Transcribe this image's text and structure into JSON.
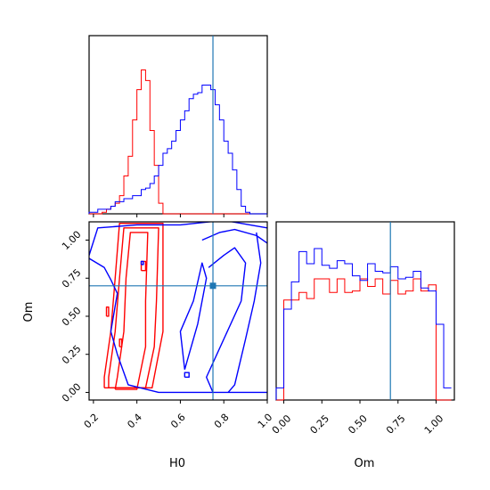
{
  "chart_data": {
    "type": "corner",
    "params": [
      "H0",
      "Om"
    ],
    "colors": {
      "run_a": "#ff0000",
      "run_b": "#0000ff",
      "truth": "#1f77b4"
    },
    "truth": {
      "H0": 0.75,
      "Om": 0.7
    },
    "axes": {
      "H0": {
        "label": "H0",
        "range": [
          0.18,
          1.0
        ],
        "ticks": [
          0.2,
          0.4,
          0.6,
          0.8,
          1.0
        ],
        "tick_labels": [
          "0.2",
          "0.4",
          "0.6",
          "0.8",
          "1.0"
        ]
      },
      "Om": {
        "label": "Om",
        "range": [
          -0.05,
          1.12
        ],
        "ticks": [
          0.0,
          0.25,
          0.5,
          0.75,
          1.0
        ],
        "tick_labels": [
          "0.00",
          "0.25",
          "0.50",
          "0.75",
          "1.00"
        ]
      }
    },
    "hist_H0": {
      "bin_edges": [
        0.18,
        0.2,
        0.22,
        0.24,
        0.26,
        0.28,
        0.3,
        0.32,
        0.34,
        0.36,
        0.38,
        0.4,
        0.42,
        0.44,
        0.46,
        0.48,
        0.5,
        0.52,
        0.54,
        0.56,
        0.58,
        0.6,
        0.62,
        0.64,
        0.66,
        0.68,
        0.7,
        0.72,
        0.74,
        0.76,
        0.78,
        0.8,
        0.82,
        0.84,
        0.86,
        0.88,
        0.9,
        0.92,
        0.94,
        0.96,
        0.98,
        1.0
      ],
      "series": [
        {
          "color": "red",
          "counts": [
            0,
            0,
            0,
            0.01,
            0.03,
            0.05,
            0.07,
            0.12,
            0.25,
            0.38,
            0.62,
            0.82,
            0.95,
            0.88,
            0.55,
            0.32,
            0.07,
            0,
            0,
            0,
            0,
            0,
            0,
            0,
            0,
            0,
            0,
            0,
            0,
            0,
            0,
            0,
            0,
            0,
            0,
            0,
            0,
            0,
            0,
            0,
            0
          ]
        },
        {
          "color": "blue",
          "counts": [
            0.01,
            0.01,
            0.03,
            0.03,
            0.03,
            0.05,
            0.08,
            0.08,
            0.1,
            0.1,
            0.12,
            0.12,
            0.16,
            0.17,
            0.2,
            0.25,
            0.32,
            0.4,
            0.43,
            0.48,
            0.55,
            0.62,
            0.68,
            0.76,
            0.79,
            0.8,
            0.85,
            0.85,
            0.82,
            0.72,
            0.62,
            0.48,
            0.4,
            0.29,
            0.16,
            0.05,
            0.01,
            0,
            0,
            0,
            0
          ]
        }
      ]
    },
    "hist_Om": {
      "bin_edges": [
        -0.05,
        0.0,
        0.05,
        0.1,
        0.15,
        0.2,
        0.25,
        0.3,
        0.35,
        0.4,
        0.45,
        0.5,
        0.55,
        0.6,
        0.65,
        0.7,
        0.75,
        0.8,
        0.85,
        0.9,
        0.95,
        1.0,
        1.05,
        1.1
      ],
      "series": [
        {
          "color": "red",
          "counts": [
            0,
            0.66,
            0.66,
            0.71,
            0.67,
            0.8,
            0.8,
            0.71,
            0.8,
            0.71,
            0.72,
            0.8,
            0.75,
            0.8,
            0.7,
            0.79,
            0.7,
            0.72,
            0.8,
            0.72,
            0.76,
            0,
            0,
            0
          ]
        },
        {
          "color": "blue",
          "counts": [
            0.08,
            0.6,
            0.78,
            0.98,
            0.9,
            1.0,
            0.89,
            0.87,
            0.92,
            0.9,
            0.82,
            0.79,
            0.9,
            0.85,
            0.84,
            0.88,
            0.8,
            0.81,
            0.85,
            0.74,
            0.72,
            0.5,
            0.08,
            0.08
          ]
        }
      ]
    },
    "contours": [
      {
        "color": "red",
        "points": [
          [
            0.3,
            0.02
          ],
          [
            0.4,
            0.02
          ],
          [
            0.44,
            0.3
          ],
          [
            0.44,
            0.6
          ],
          [
            0.45,
            1.05
          ],
          [
            0.37,
            1.05
          ],
          [
            0.35,
            0.75
          ],
          [
            0.34,
            0.4
          ],
          [
            0.31,
            0.1
          ],
          [
            0.3,
            0.02
          ]
        ]
      },
      {
        "color": "red",
        "points": [
          [
            0.27,
            0.03
          ],
          [
            0.44,
            0.03
          ],
          [
            0.48,
            0.3
          ],
          [
            0.49,
            0.6
          ],
          [
            0.5,
            1.08
          ],
          [
            0.34,
            1.08
          ],
          [
            0.32,
            0.75
          ],
          [
            0.3,
            0.4
          ],
          [
            0.27,
            0.1
          ],
          [
            0.27,
            0.03
          ]
        ]
      },
      {
        "color": "red",
        "points": [
          [
            0.25,
            0.03
          ],
          [
            0.47,
            0.03
          ],
          [
            0.52,
            0.4
          ],
          [
            0.52,
            1.11
          ],
          [
            0.32,
            1.11
          ],
          [
            0.3,
            0.75
          ],
          [
            0.28,
            0.4
          ],
          [
            0.25,
            0.1
          ],
          [
            0.25,
            0.03
          ]
        ]
      },
      {
        "color": "red",
        "points": [
          [
            0.42,
            0.8
          ],
          [
            0.44,
            0.8
          ],
          [
            0.44,
            0.86
          ],
          [
            0.42,
            0.86
          ],
          [
            0.42,
            0.8
          ]
        ]
      },
      {
        "color": "red",
        "points": [
          [
            0.32,
            0.3
          ],
          [
            0.33,
            0.3
          ],
          [
            0.33,
            0.35
          ],
          [
            0.32,
            0.35
          ],
          [
            0.32,
            0.3
          ]
        ]
      },
      {
        "color": "red",
        "points": [
          [
            0.26,
            0.5
          ],
          [
            0.27,
            0.5
          ],
          [
            0.27,
            0.56
          ],
          [
            0.26,
            0.56
          ],
          [
            0.26,
            0.5
          ]
        ]
      },
      {
        "color": "blue",
        "points": [
          [
            0.18,
            0.88
          ],
          [
            0.25,
            0.82
          ],
          [
            0.28,
            0.74
          ],
          [
            0.31,
            0.65
          ],
          [
            0.28,
            0.4
          ],
          [
            0.31,
            0.25
          ],
          [
            0.36,
            0.05
          ],
          [
            0.5,
            0.0
          ],
          [
            0.8,
            0.0
          ],
          [
            1.0,
            0.0
          ]
        ]
      },
      {
        "color": "blue",
        "points": [
          [
            0.18,
            0.9
          ],
          [
            0.22,
            1.08
          ],
          [
            0.4,
            1.1
          ],
          [
            0.6,
            1.1
          ],
          [
            0.8,
            1.13
          ],
          [
            1.0,
            1.08
          ]
        ]
      },
      {
        "color": "blue",
        "points": [
          [
            0.73,
            0.82
          ],
          [
            0.8,
            0.9
          ],
          [
            0.85,
            0.95
          ],
          [
            0.9,
            0.85
          ],
          [
            0.88,
            0.6
          ],
          [
            0.8,
            0.35
          ],
          [
            0.72,
            0.1
          ],
          [
            0.75,
            0.0
          ]
        ]
      },
      {
        "color": "blue",
        "points": [
          [
            0.7,
            1.0
          ],
          [
            0.78,
            1.05
          ],
          [
            0.85,
            1.07
          ],
          [
            0.95,
            1.03
          ],
          [
            1.0,
            0.98
          ]
        ]
      },
      {
        "color": "blue",
        "points": [
          [
            0.62,
            0.15
          ],
          [
            0.6,
            0.4
          ],
          [
            0.66,
            0.6
          ],
          [
            0.7,
            0.85
          ],
          [
            0.72,
            0.75
          ],
          [
            0.68,
            0.45
          ],
          [
            0.62,
            0.15
          ]
        ]
      },
      {
        "color": "blue",
        "points": [
          [
            0.95,
            1.05
          ],
          [
            0.97,
            0.85
          ],
          [
            0.94,
            0.6
          ],
          [
            0.9,
            0.35
          ],
          [
            0.85,
            0.05
          ],
          [
            0.82,
            0.0
          ]
        ]
      },
      {
        "color": "blue",
        "points": [
          [
            0.62,
            0.1
          ],
          [
            0.64,
            0.1
          ],
          [
            0.64,
            0.13
          ],
          [
            0.62,
            0.13
          ],
          [
            0.62,
            0.1
          ]
        ]
      },
      {
        "color": "blue",
        "points": [
          [
            0.42,
            0.84
          ],
          [
            0.43,
            0.84
          ],
          [
            0.43,
            0.86
          ],
          [
            0.42,
            0.86
          ],
          [
            0.42,
            0.84
          ]
        ]
      }
    ]
  }
}
